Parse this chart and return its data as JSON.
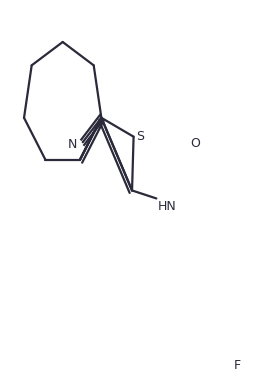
{
  "background_color": "#ffffff",
  "line_color": "#2a2a3a",
  "line_width": 1.6,
  "figsize": [
    2.56,
    3.82
  ],
  "dpi": 100,
  "xlim": [
    0,
    256
  ],
  "ylim": [
    0,
    382
  ]
}
